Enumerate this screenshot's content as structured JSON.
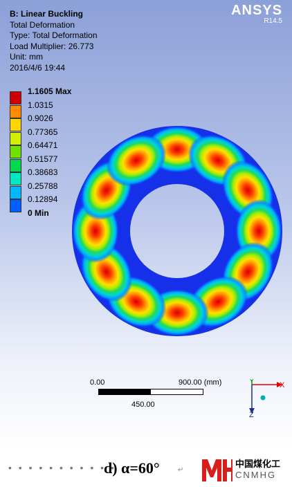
{
  "header": {
    "title": "B: Linear Buckling",
    "lines": [
      "Total Deformation",
      "Type: Total Deformation",
      "Load Multiplier: 26.773",
      "Unit: mm",
      "2016/4/6 19:44"
    ]
  },
  "brand": {
    "name": "ANSYS",
    "version": "R14.5"
  },
  "legend": {
    "entries": [
      {
        "label": "1.1605 Max",
        "color": "#d10000"
      },
      {
        "label": "1.0315",
        "color": "#ff8a00"
      },
      {
        "label": "0.9026",
        "color": "#ffd500"
      },
      {
        "label": "0.77365",
        "color": "#d4f000"
      },
      {
        "label": "0.64471",
        "color": "#6fe000"
      },
      {
        "label": "0.51577",
        "color": "#00d84e"
      },
      {
        "label": "0.38683",
        "color": "#00e8c0"
      },
      {
        "label": "0.25788",
        "color": "#00b8ff"
      },
      {
        "label": "0.12894",
        "color": "#0060ff"
      },
      {
        "label": "0 Min",
        "color": "#0010e0"
      }
    ]
  },
  "scalebar": {
    "left": "0.00",
    "right": "900.00 (mm)",
    "mid": "450.00"
  },
  "axes": {
    "x": "X",
    "y": "Y",
    "z": "Z"
  },
  "caption": {
    "dots": "• • • • • • • • • • •",
    "text": "d) α=60°",
    "mark": "↵"
  },
  "logo": {
    "cn": "中国煤化工",
    "en": "CNMHG"
  }
}
